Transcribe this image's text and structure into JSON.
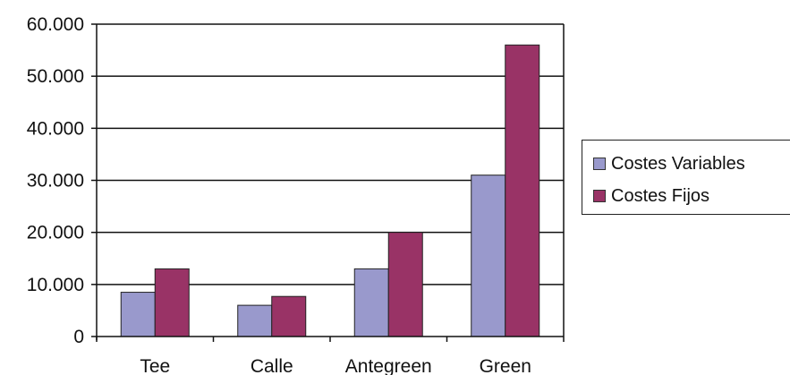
{
  "chart_data": {
    "type": "bar",
    "title": "",
    "xlabel": "",
    "ylabel": "",
    "categories": [
      "Tee",
      "Calle",
      "Antegreen",
      "Green"
    ],
    "series": [
      {
        "name": "Costes Variables",
        "values": [
          8500,
          6000,
          13000,
          31000
        ],
        "color": "#9999cc"
      },
      {
        "name": "Costes Fijos",
        "values": [
          13000,
          7700,
          20000,
          56000
        ],
        "color": "#993366"
      }
    ],
    "ylim": [
      0,
      60000
    ],
    "yticks": [
      0,
      10000,
      20000,
      30000,
      40000,
      50000,
      60000
    ],
    "ytick_labels": [
      "0",
      "10.000",
      "20.000",
      "30.000",
      "40.000",
      "50.000",
      "60.000"
    ],
    "grid": true,
    "legend_position": "right"
  }
}
